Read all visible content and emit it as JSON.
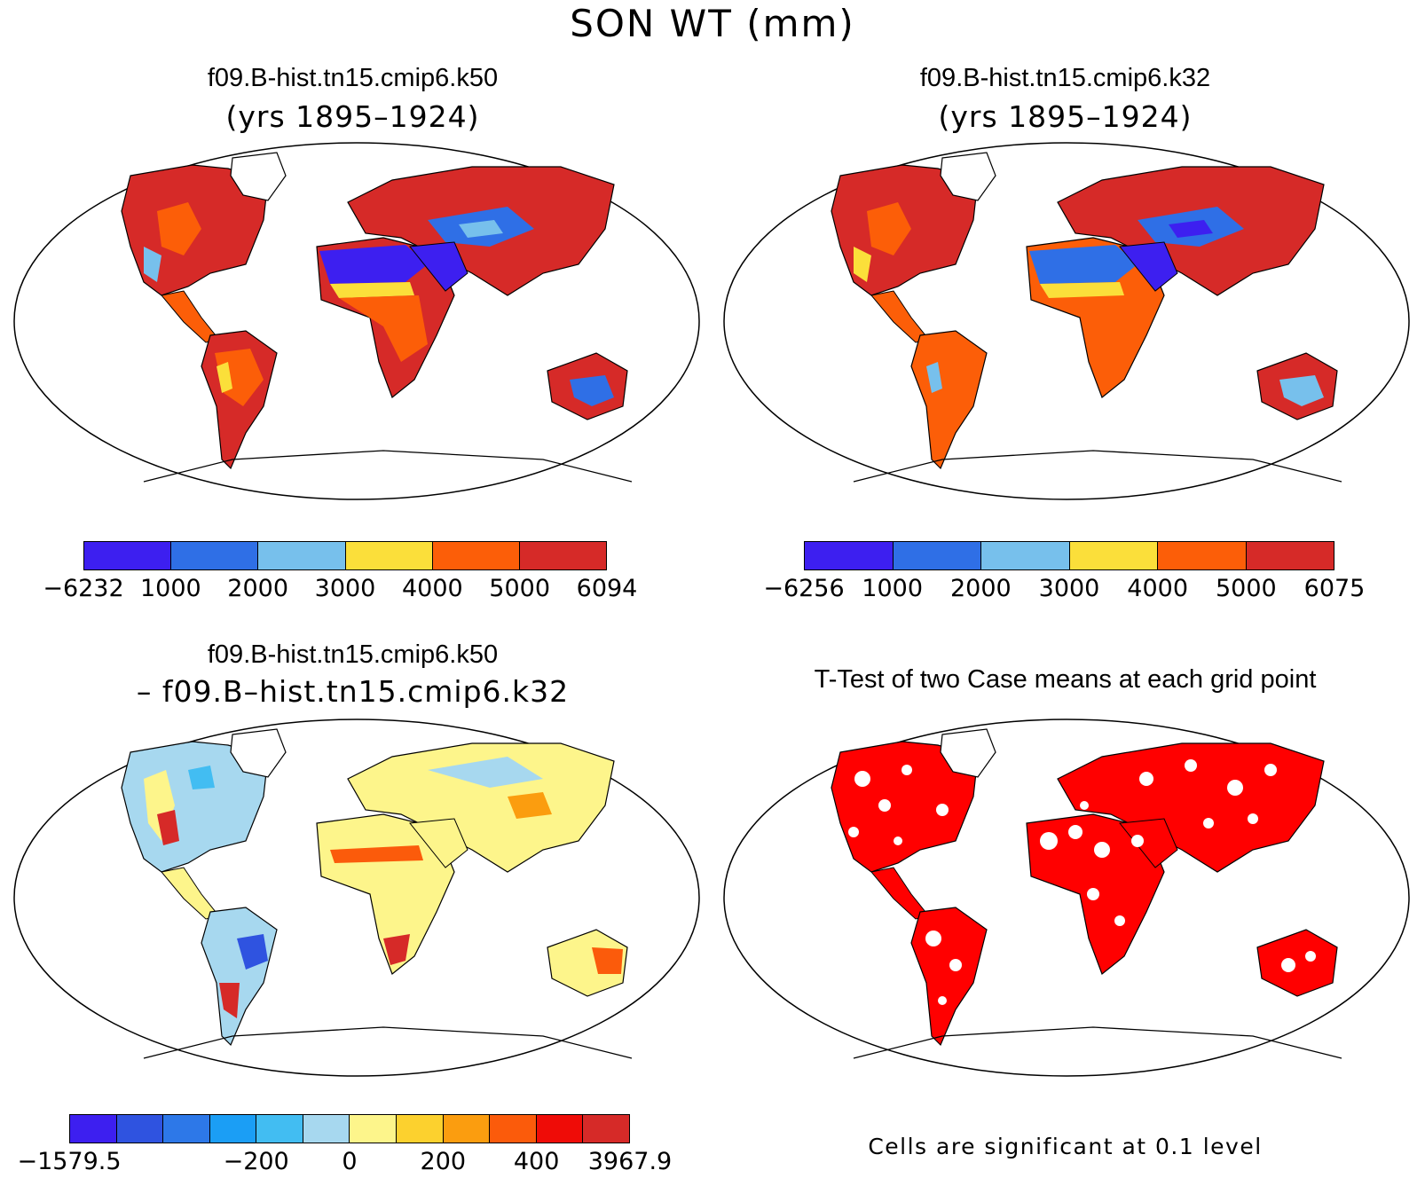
{
  "title": "SON WT (mm)",
  "panels": {
    "case1": {
      "case_name": "f09.B-hist.tn15.cmip6.k50",
      "years": "(yrs 1895–1924)"
    },
    "case2": {
      "case_name": "f09.B-hist.tn15.cmip6.k32",
      "years": "(yrs 1895–1924)"
    },
    "diff": {
      "line1": "f09.B-hist.tn15.cmip6.k50",
      "line2": "– f09.B–hist.tn15.cmip6.k32"
    },
    "ttest": {
      "title": "T-Test of two Case means at each grid point",
      "note": "Cells are significant at 0.1 level"
    }
  },
  "colorbars": {
    "case1": {
      "labels": [
        "−6232",
        "1000",
        "2000",
        "3000",
        "4000",
        "5000",
        "6094"
      ],
      "colors": [
        "#3d1ff0",
        "#2f6fe6",
        "#77c0ec",
        "#fbdf3a",
        "#fc5e08",
        "#d62a28"
      ]
    },
    "case2": {
      "labels": [
        "−6256",
        "1000",
        "2000",
        "3000",
        "4000",
        "5000",
        "6075"
      ],
      "colors": [
        "#3d1ff0",
        "#2f6fe6",
        "#77c0ec",
        "#fbdf3a",
        "#fc5e08",
        "#d62a28"
      ]
    },
    "diff": {
      "labels": [
        "−1579.5",
        "−200",
        "0",
        "200",
        "400",
        "3967.9"
      ],
      "label_positions": [
        0,
        4,
        6,
        8,
        10,
        12
      ],
      "colors": [
        "#3d1ff0",
        "#2f53e0",
        "#2d78e8",
        "#1b9ef5",
        "#42bdf2",
        "#a7d8ef",
        "#fdf58b",
        "#fcd12e",
        "#fb9d0f",
        "#fb5b0b",
        "#ef0c07",
        "#d62a28"
      ]
    }
  },
  "map_colors": {
    "ocean": "#ffffff",
    "coast": "#000000",
    "ttest_significant": "#ff0000"
  }
}
